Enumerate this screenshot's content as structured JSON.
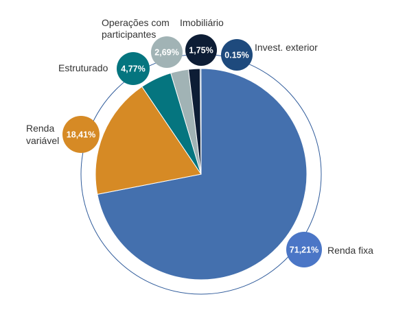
{
  "chart_data": {
    "type": "pie",
    "legend": "none",
    "slices": [
      {
        "label": "Renda fixa",
        "value": 71.21,
        "value_text": "71,21%",
        "color": "#4470ae",
        "badge_color": "#4b76c6"
      },
      {
        "label": "Renda variável",
        "value": 18.41,
        "value_text": "18,41%",
        "color": "#d68a25",
        "badge_color": "#d68a25"
      },
      {
        "label": "Estruturado",
        "value": 4.77,
        "value_text": "4,77%",
        "color": "#05757f",
        "badge_color": "#05757f"
      },
      {
        "label": "Operações com participantes",
        "value": 2.69,
        "value_text": "2,69%",
        "color": "#a1b3b5",
        "badge_color": "#a1b3b5"
      },
      {
        "label": "Imobiliário",
        "value": 1.75,
        "value_text": "1,75%",
        "color": "#0d1d35",
        "badge_color": "#0d1d35"
      },
      {
        "label": "Invest. exterior",
        "value": 0.15,
        "value_text": "0.15%",
        "color": "#1e4a7d",
        "badge_color": "#1e4a7d"
      }
    ]
  }
}
